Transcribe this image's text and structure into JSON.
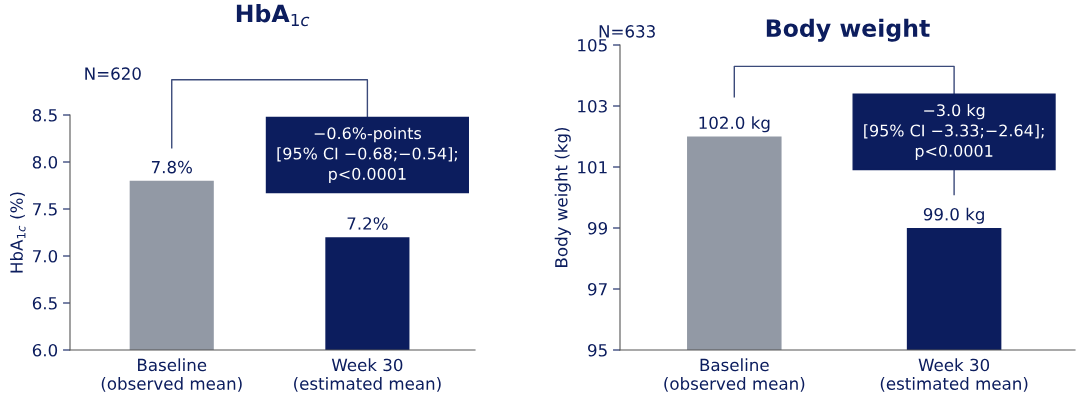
{
  "chart_data": [
    {
      "type": "bar",
      "title": "HbA$_{1c}$",
      "ylabel": "HbA$_{1c}$ (%)",
      "categories": [
        "Baseline\n(observed mean)",
        "Week 30\n(estimated mean)"
      ],
      "values": [
        7.8,
        7.2
      ],
      "colors": [
        "#9299a5",
        "#0c1d5e"
      ],
      "value_labels": [
        "7.8%",
        "7.2%"
      ],
      "ylim": [
        6.0,
        8.5
      ],
      "yticks": [
        {
          "value": 6.0,
          "label": "6.0"
        },
        {
          "value": 6.5,
          "label": "6.5"
        },
        {
          "value": 7.0,
          "label": "7.0"
        },
        {
          "value": 7.5,
          "label": "7.5"
        },
        {
          "value": 8.0,
          "label": "8.0"
        },
        {
          "value": 8.5,
          "label": "8.5"
        }
      ],
      "grid": false,
      "legend": false,
      "annotations": [
        "N=620",
        "−0.6%-points\n[95% CI −0.68;−0.54];\np<0.0001"
      ]
    },
    {
      "type": "bar",
      "title": "Body weight",
      "ylabel": "Body weight (kg)",
      "categories": [
        "Baseline\n(observed mean)",
        "Week 30\n(estimated mean)"
      ],
      "values": [
        102.0,
        99.0
      ],
      "colors": [
        "#9299a5",
        "#0c1d5e"
      ],
      "value_labels": [
        "102.0 kg",
        "99.0 kg"
      ],
      "ylim": [
        95,
        105
      ],
      "yticks": [
        95,
        97,
        99,
        101,
        103,
        105
      ],
      "grid": false,
      "legend": false,
      "annotations": [
        "N=633",
        "−3.0 kg\n[95% CI −3.33;−2.64];\np<0.0001"
      ]
    }
  ]
}
